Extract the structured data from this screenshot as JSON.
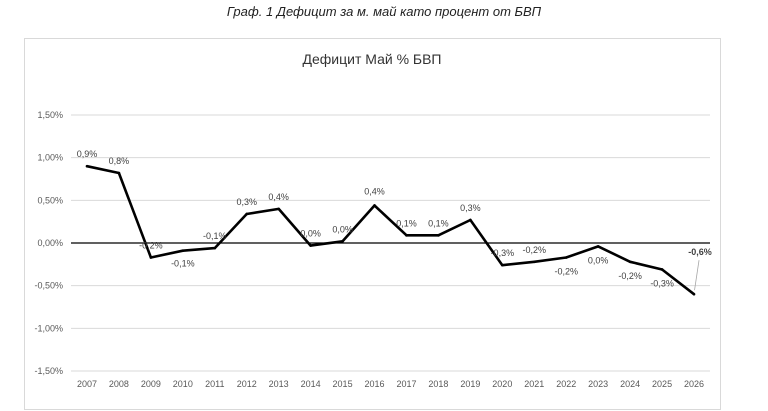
{
  "caption": "Граф. 1 Дефицит за м. май като процент от БВП",
  "chart_data": {
    "type": "line",
    "title": "Дефицит Май % БВП",
    "xlabel": "",
    "ylabel": "",
    "categories": [
      "2007",
      "2008",
      "2009",
      "2010",
      "2011",
      "2012",
      "2013",
      "2014",
      "2015",
      "2016",
      "2017",
      "2018",
      "2019",
      "2020",
      "2021",
      "2022",
      "2023",
      "2024",
      "2025",
      "2026"
    ],
    "series": [
      {
        "values": [
          0.9,
          0.82,
          -0.17,
          -0.09,
          -0.06,
          0.34,
          0.4,
          -0.03,
          0.02,
          0.44,
          0.09,
          0.09,
          0.27,
          -0.26,
          -0.22,
          -0.17,
          -0.04,
          -0.22,
          -0.31,
          -0.6
        ],
        "labels": [
          "0,9%",
          "0,8%",
          "-0,2%",
          "-0,1%",
          "-0,1%",
          "0,3%",
          "0,4%",
          "0,0%",
          "0,0%",
          "0,4%",
          "0,1%",
          "0,1%",
          "0,3%",
          "-0,3%",
          "-0,2%",
          "-0,2%",
          "0,0%",
          "-0,2%",
          "-0,3%",
          "-0,6%"
        ],
        "color": "#000000"
      }
    ],
    "ylim": [
      -1.5,
      1.5
    ],
    "yticks": [
      1.5,
      1.0,
      0.5,
      0.0,
      -0.5,
      -1.0,
      -1.5
    ],
    "ytick_labels": [
      "1,50%",
      "1,00%",
      "0,50%",
      "0,00%",
      "-0,50%",
      "-1,00%",
      "-1,50%"
    ],
    "grid": true,
    "highlight_color": "#ff0000"
  }
}
